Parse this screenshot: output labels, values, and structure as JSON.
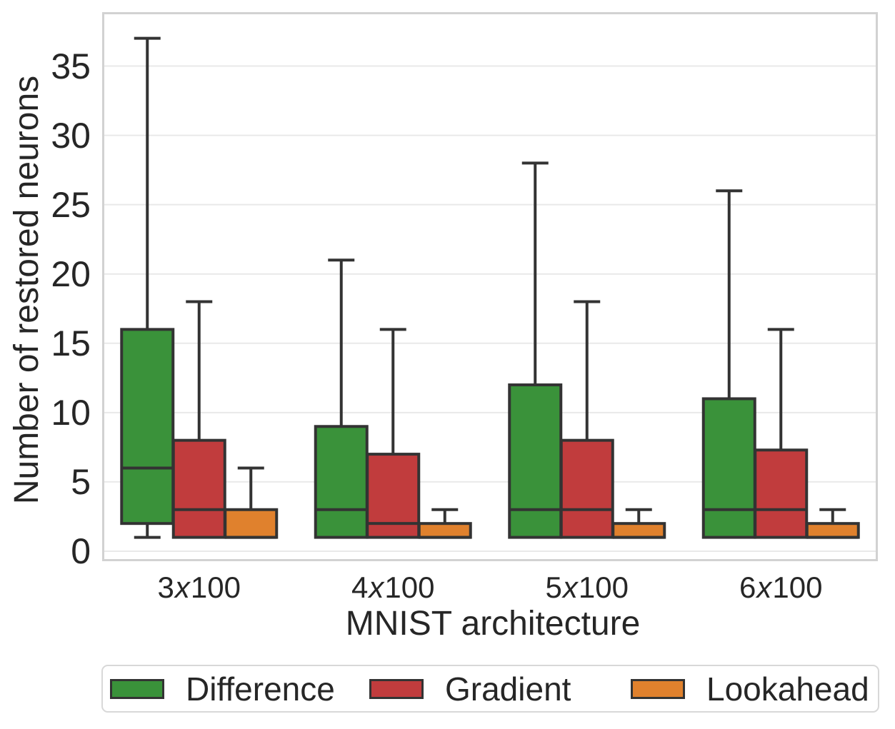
{
  "chart_data": {
    "type": "boxplot",
    "title": "",
    "xlabel": "MNIST architecture",
    "ylabel": "Number of restored neurons",
    "categories": [
      "3x100",
      "4x100",
      "5x100",
      "6x100"
    ],
    "yticks": [
      0,
      5,
      10,
      15,
      20,
      25,
      30,
      35
    ],
    "ylim": [
      -0.9,
      38.9
    ],
    "grid": "horizontal",
    "legend_position": "bottom",
    "series": [
      {
        "name": "Difference",
        "color": "#3a923a",
        "boxes": [
          {
            "category": "3x100",
            "whislo": 1,
            "q1": 2,
            "med": 6,
            "q3": 16,
            "whishi": 37
          },
          {
            "category": "4x100",
            "whislo": 1,
            "q1": 1,
            "med": 3,
            "q3": 9,
            "whishi": 21
          },
          {
            "category": "5x100",
            "whislo": 1,
            "q1": 1,
            "med": 3,
            "q3": 12,
            "whishi": 28
          },
          {
            "category": "6x100",
            "whislo": 1,
            "q1": 1,
            "med": 3,
            "q3": 11,
            "whishi": 26
          }
        ]
      },
      {
        "name": "Gradient",
        "color": "#c13c3d",
        "boxes": [
          {
            "category": "3x100",
            "whislo": 1,
            "q1": 1,
            "med": 3,
            "q3": 8,
            "whishi": 18
          },
          {
            "category": "4x100",
            "whislo": 1,
            "q1": 1,
            "med": 2,
            "q3": 7,
            "whishi": 16
          },
          {
            "category": "5x100",
            "whislo": 1,
            "q1": 1,
            "med": 3,
            "q3": 8,
            "whishi": 18
          },
          {
            "category": "6x100",
            "whislo": 1,
            "q1": 1,
            "med": 3,
            "q3": 7.3,
            "whishi": 16
          }
        ]
      },
      {
        "name": "Lookahead",
        "color": "#e0812d",
        "boxes": [
          {
            "category": "3x100",
            "whislo": 1,
            "q1": 1,
            "med": 1,
            "q3": 3,
            "whishi": 6
          },
          {
            "category": "4x100",
            "whislo": 1,
            "q1": 1,
            "med": 1,
            "q3": 2,
            "whishi": 3
          },
          {
            "category": "5x100",
            "whislo": 1,
            "q1": 1,
            "med": 1,
            "q3": 2,
            "whishi": 3
          },
          {
            "category": "6x100",
            "whislo": 1,
            "q1": 1,
            "med": 1,
            "q3": 2,
            "whishi": 3
          }
        ]
      }
    ],
    "colors": {
      "box_edge": "#333333",
      "median": "#333333",
      "whisker": "#333333",
      "grid": "#e9e9e9",
      "spine": "#d2d2d2",
      "text": "#262626",
      "background": "#ffffff"
    }
  }
}
